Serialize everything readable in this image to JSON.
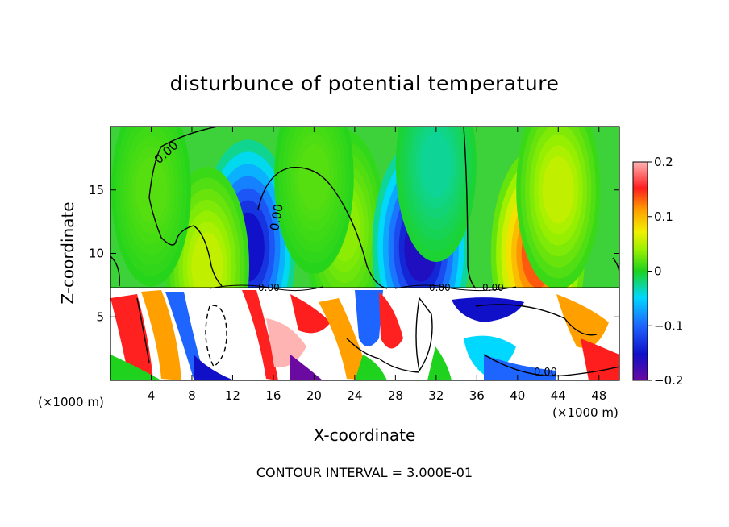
{
  "chart_data": {
    "type": "heatmap",
    "title": "disturbunce of potential temperature",
    "xlabel": "X-coordinate",
    "ylabel": "Z-coordinate",
    "x_unit_label_left": "(×1000 m)",
    "x_unit_label_right": "(×1000 m)",
    "xlim": [
      0,
      50
    ],
    "ylim": [
      0,
      20
    ],
    "x_ticks": [
      4,
      8,
      12,
      16,
      20,
      24,
      28,
      32,
      36,
      40,
      44,
      48
    ],
    "y_ticks": [
      5,
      10,
      15
    ],
    "colorbar": {
      "range": [
        -0.2,
        0.2
      ],
      "tick_labels": [
        "0.2",
        "0.1",
        "0",
        "−0.1",
        "−0.2"
      ],
      "tick_values": [
        0.2,
        0.1,
        0,
        -0.1,
        -0.2
      ]
    },
    "contour_labels": [
      "0.00",
      "0.00",
      "0.00",
      "0.00",
      "0.00",
      "0.00"
    ],
    "footer": "CONTOUR INTERVAL = 3.000E-01",
    "features": [
      {
        "x": 13.5,
        "z": 10.5,
        "value": -0.17
      },
      {
        "x": 9.5,
        "z": 9.0,
        "value": 0.06
      },
      {
        "x": 23.0,
        "z": 12.0,
        "value": 0.04
      },
      {
        "x": 30.5,
        "z": 10.5,
        "value": -0.18
      },
      {
        "x": 20.0,
        "z": 16.0,
        "value": 0.02
      },
      {
        "x": 42.0,
        "z": 10.0,
        "value": 0.15
      },
      {
        "x": 44.0,
        "z": 15.0,
        "value": 0.06
      },
      {
        "x": 32.0,
        "z": 17.0,
        "value": -0.03
      },
      {
        "x": 4.0,
        "z": 15.0,
        "value": 0.02
      }
    ]
  }
}
